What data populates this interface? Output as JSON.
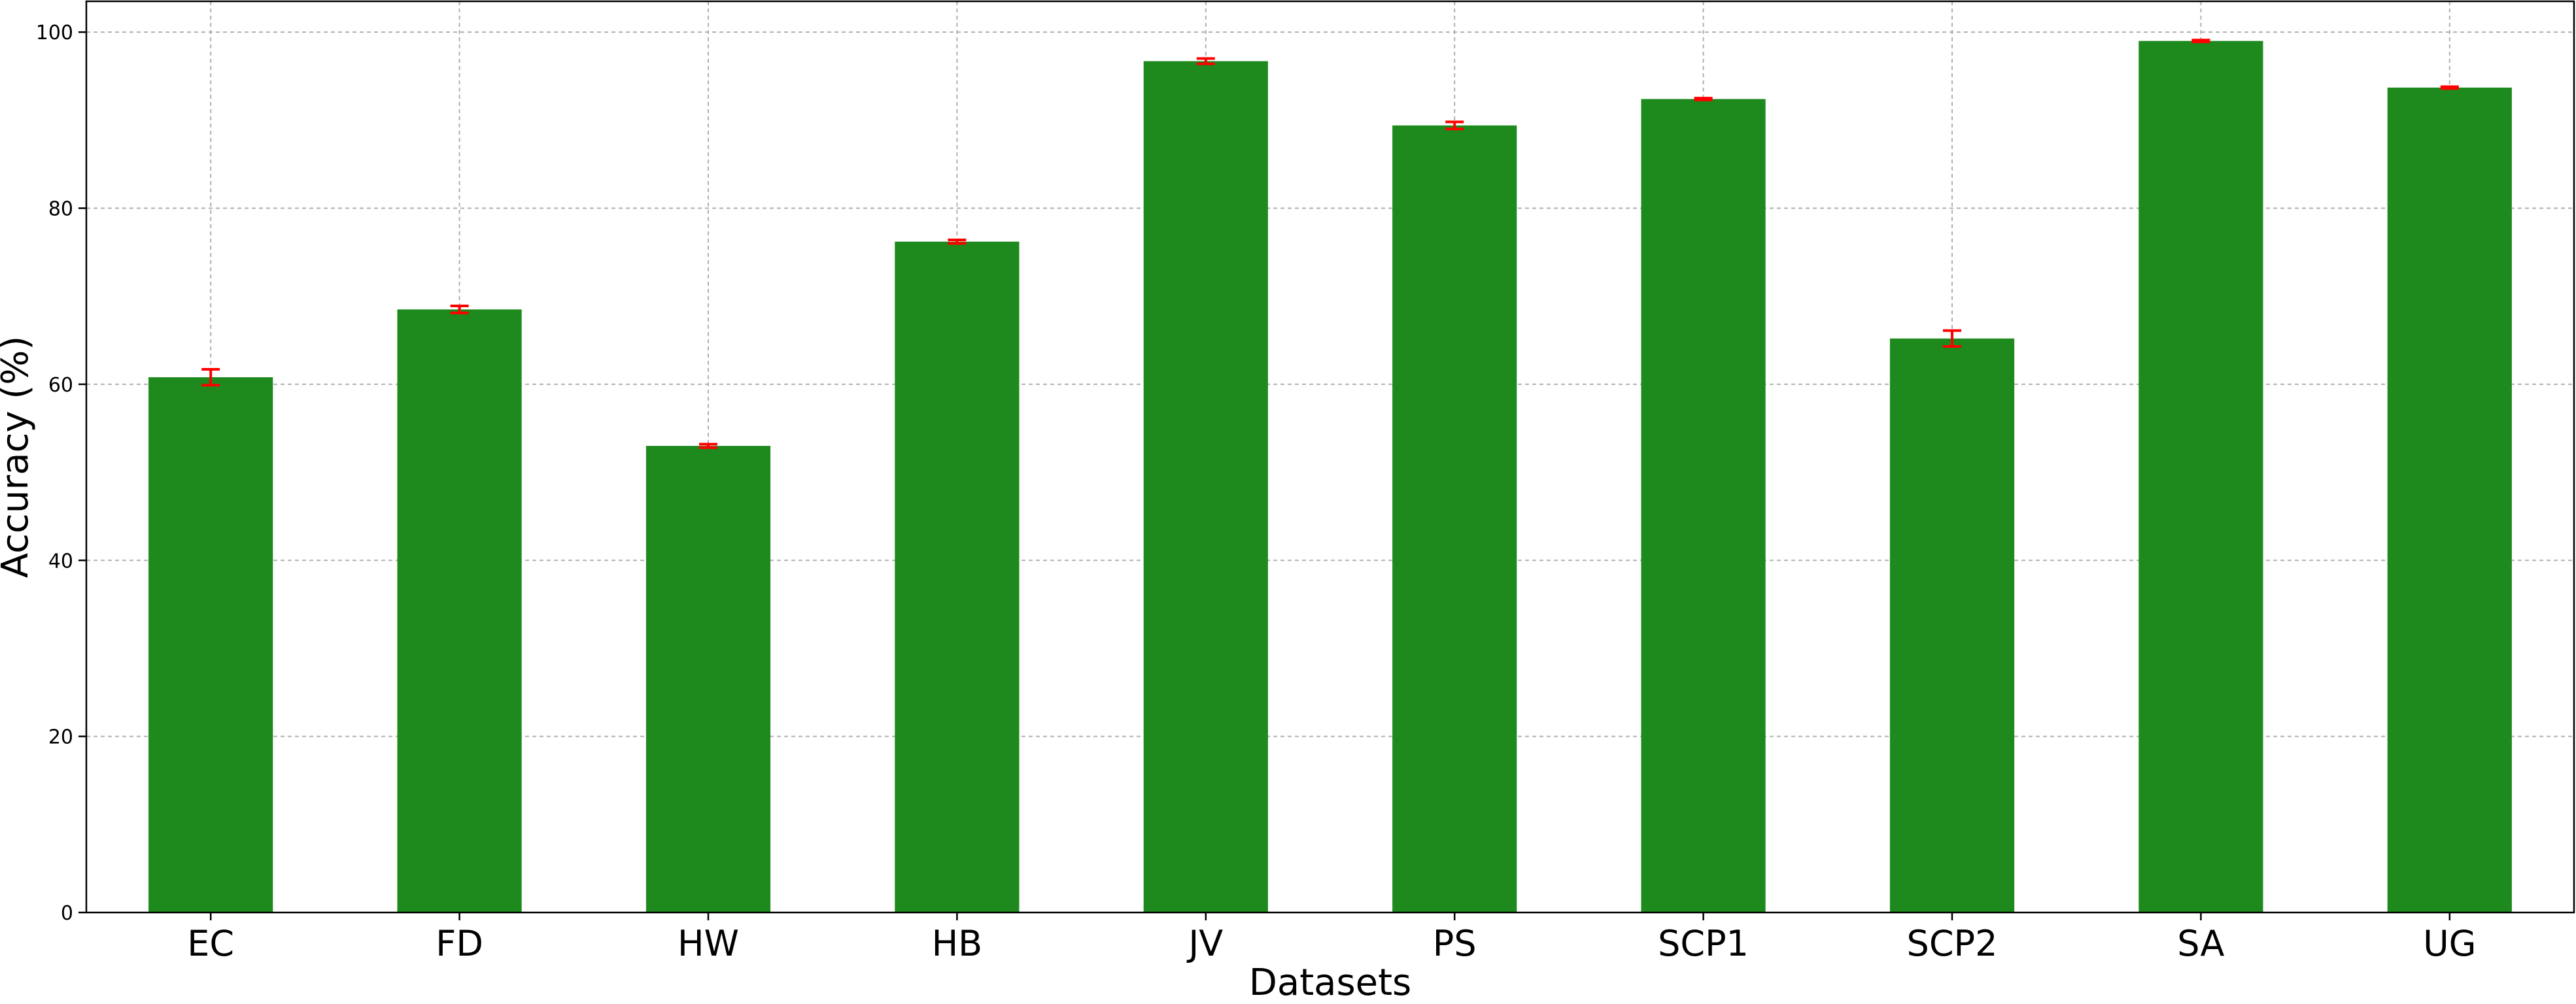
{
  "chart_data": {
    "type": "bar",
    "title": "",
    "xlabel": "Datasets",
    "ylabel": "Accuracy (%)",
    "ylim": [
      0,
      103.5
    ],
    "yticks": [
      0,
      20,
      40,
      60,
      80,
      100
    ],
    "grid": true,
    "categories": [
      "EC",
      "FD",
      "HW",
      "HB",
      "JV",
      "PS",
      "SCP1",
      "SCP2",
      "SA",
      "UG"
    ],
    "values": [
      60.8,
      68.5,
      53.0,
      76.2,
      96.7,
      89.4,
      92.4,
      65.2,
      99.0,
      93.7
    ],
    "errors": [
      0.9,
      0.4,
      0.2,
      0.2,
      0.3,
      0.4,
      0.1,
      0.9,
      0.1,
      0.1
    ],
    "bar_color": "#1e8a1e",
    "error_color": "#ff0000"
  }
}
